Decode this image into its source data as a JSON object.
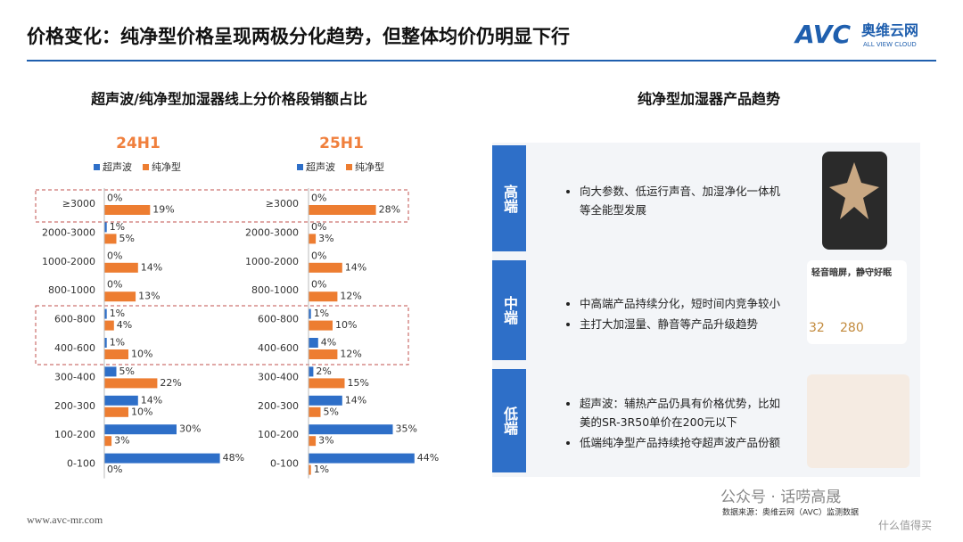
{
  "header": {
    "title": "价格变化：纯净型价格呈现两极分化趋势，但整体均价仍明显下行",
    "logo": "AVC",
    "brand": "奥维云网",
    "brand_en": "ALL VIEW CLOUD"
  },
  "left": {
    "title": "超声波/纯净型加湿器线上分价格段销额占比"
  },
  "chart_data": [
    {
      "type": "hbar",
      "title": "24H1",
      "categories": [
        "≥3000",
        "2000-3000",
        "1000-2000",
        "800-1000",
        "600-800",
        "400-600",
        "300-400",
        "200-300",
        "100-200",
        "0-100"
      ],
      "series": [
        {
          "name": "超声波",
          "color": "#2e6fc8",
          "values": [
            0,
            1,
            0,
            0,
            1,
            1,
            5,
            14,
            30,
            48
          ],
          "value_labels": [
            "0%",
            "1%",
            "0%",
            "0%",
            "1%",
            "1%",
            "5%",
            "14%",
            "30%",
            "48%"
          ]
        },
        {
          "name": "纯净型",
          "color": "#ed7d31",
          "values": [
            19,
            5,
            14,
            13,
            4,
            10,
            22,
            10,
            3,
            0
          ],
          "value_labels": [
            "19%",
            "5%",
            "14%",
            "13%",
            "4%",
            "10%",
            "22%",
            "10%",
            "3%",
            "0%"
          ]
        }
      ]
    },
    {
      "type": "hbar",
      "title": "25H1",
      "categories": [
        "≥3000",
        "2000-3000",
        "1000-2000",
        "800-1000",
        "600-800",
        "400-600",
        "300-400",
        "200-300",
        "100-200",
        "0-100"
      ],
      "series": [
        {
          "name": "超声波",
          "color": "#2e6fc8",
          "values": [
            0,
            0,
            0,
            0,
            1,
            4,
            2,
            14,
            35,
            44
          ],
          "value_labels": [
            "0%",
            "0%",
            "0%",
            "0%",
            "1%",
            "4%",
            "2%",
            "14%",
            "35%",
            "44%"
          ]
        },
        {
          "name": "纯净型",
          "color": "#ed7d31",
          "values": [
            28,
            3,
            14,
            12,
            10,
            12,
            15,
            5,
            3,
            1
          ],
          "value_labels": [
            "28%",
            "3%",
            "14%",
            "12%",
            "10%",
            "12%",
            "15%",
            "5%",
            "3%",
            "1%"
          ]
        }
      ]
    }
  ],
  "trend": {
    "title": "纯净型加湿器产品趋势",
    "rows": [
      {
        "label": "高端",
        "bullets": [
          "向大参数、低运行声音、加湿净化一体机等全能型发展"
        ]
      },
      {
        "label": "中端",
        "bullets": [
          "中高端产品持续分化，短时间内竞争较小",
          "主打大加湿量、静音等产品升级趋势"
        ]
      },
      {
        "label": "低端",
        "bullets": [
          "超声波：辅热产品仍具有价格优势，比如美的SR-3R50单价在200元以下",
          "低端纯净型产品持续抢夺超声波产品份额"
        ]
      }
    ],
    "image_texts": [
      "轻音暗屏，静守好眠",
      "32",
      "280"
    ]
  },
  "footer": {
    "site": "www.avc-mr.com",
    "source": "数据来源：奥维云网（AVC）监测数据",
    "watermark": "公众号 · 话唠高晟",
    "watermark2": "什么值得买"
  }
}
